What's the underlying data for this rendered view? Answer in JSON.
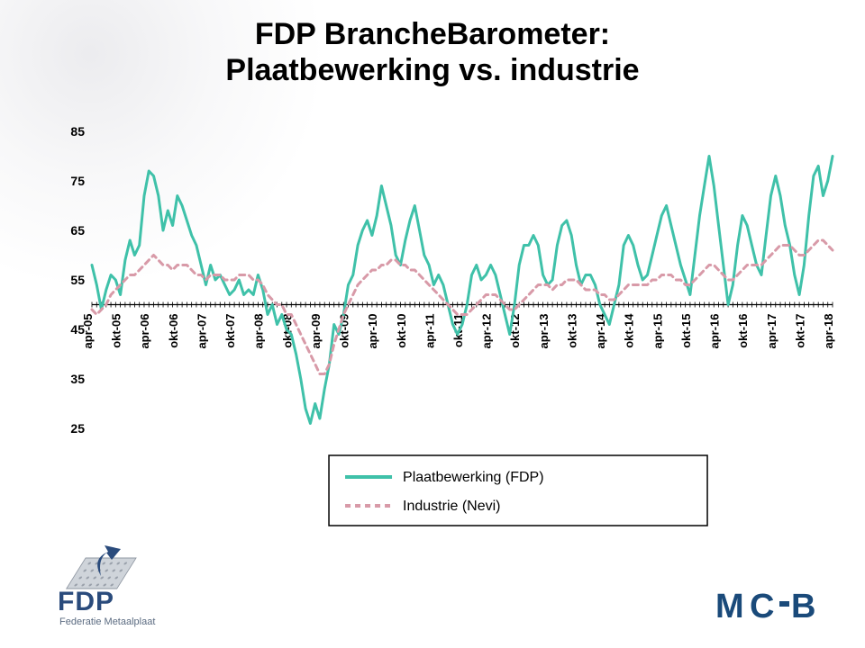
{
  "title_line1": "FDP BrancheBarometer:",
  "title_line2": "Plaatbewerking vs. industrie",
  "chart": {
    "type": "line",
    "background_color": "#ffffff",
    "ylim": [
      25,
      85
    ],
    "ytick_step": 10,
    "yticks": [
      25,
      35,
      45,
      55,
      65,
      75,
      85
    ],
    "ytick_fontsize": 14,
    "ytick_fontweight": "bold",
    "xtick_fontsize": 13,
    "xtick_fontweight": "bold",
    "xtick_rotation": -90,
    "axis_baseline_y": 50,
    "axis_color": "#000000",
    "minor_tick_every_month": true,
    "x_labels": [
      "apr-05",
      "okt-05",
      "apr-06",
      "okt-06",
      "apr-07",
      "okt-07",
      "apr-08",
      "okt-08",
      "apr-09",
      "okt-09",
      "apr-10",
      "okt-10",
      "apr-11",
      "okt-11",
      "apr-12",
      "okt-12",
      "apr-13",
      "okt-13",
      "apr-14",
      "okt-14",
      "apr-15",
      "okt-15",
      "apr-16",
      "okt-16",
      "apr-17",
      "okt-17",
      "apr-18"
    ],
    "n_months": 157,
    "series": [
      {
        "name": "Plaatbewerking (FDP)",
        "color": "#3fc1a9",
        "line_width": 3,
        "dash": "none",
        "values": [
          58,
          54,
          49,
          53,
          56,
          55,
          52,
          59,
          63,
          60,
          62,
          72,
          77,
          76,
          72,
          65,
          69,
          66,
          72,
          70,
          67,
          64,
          62,
          58,
          54,
          58,
          55,
          56,
          54,
          52,
          53,
          55,
          52,
          53,
          52,
          56,
          53,
          48,
          50,
          46,
          48,
          45,
          44,
          40,
          35,
          29,
          26,
          30,
          27,
          33,
          38,
          46,
          44,
          48,
          54,
          56,
          62,
          65,
          67,
          64,
          68,
          74,
          70,
          66,
          60,
          58,
          63,
          67,
          70,
          65,
          60,
          58,
          54,
          56,
          54,
          50,
          46,
          44,
          46,
          50,
          56,
          58,
          55,
          56,
          58,
          56,
          52,
          48,
          44,
          50,
          58,
          62,
          62,
          64,
          62,
          56,
          54,
          55,
          62,
          66,
          67,
          64,
          58,
          54,
          56,
          56,
          54,
          50,
          48,
          46,
          50,
          54,
          62,
          64,
          62,
          58,
          55,
          56,
          60,
          64,
          68,
          70,
          66,
          62,
          58,
          55,
          52,
          60,
          68,
          74,
          80,
          74,
          66,
          58,
          50,
          54,
          62,
          68,
          66,
          62,
          58,
          56,
          64,
          72,
          76,
          72,
          66,
          62,
          56,
          52,
          58,
          68,
          76,
          78,
          72,
          75,
          80
        ]
      },
      {
        "name": "Industrie (Nevi)",
        "color": "#d89aa8",
        "line_width": 3,
        "dash": "6,5",
        "values": [
          49,
          48,
          49,
          50,
          52,
          53,
          54,
          55,
          56,
          56,
          57,
          58,
          59,
          60,
          59,
          58,
          58,
          57,
          58,
          58,
          58,
          57,
          56,
          56,
          55,
          56,
          56,
          56,
          55,
          55,
          55,
          56,
          56,
          56,
          55,
          55,
          54,
          52,
          51,
          50,
          50,
          48,
          48,
          46,
          44,
          42,
          40,
          38,
          36,
          36,
          38,
          42,
          45,
          48,
          50,
          52,
          54,
          55,
          56,
          57,
          57,
          58,
          58,
          59,
          59,
          58,
          58,
          57,
          57,
          56,
          55,
          54,
          53,
          52,
          51,
          50,
          49,
          48,
          48,
          48,
          49,
          50,
          51,
          52,
          52,
          52,
          51,
          50,
          49,
          49,
          50,
          51,
          52,
          53,
          54,
          54,
          54,
          53,
          54,
          54,
          55,
          55,
          55,
          54,
          53,
          53,
          53,
          52,
          52,
          51,
          51,
          52,
          53,
          54,
          54,
          54,
          54,
          54,
          55,
          55,
          56,
          56,
          56,
          55,
          55,
          54,
          54,
          55,
          56,
          57,
          58,
          58,
          57,
          56,
          55,
          55,
          56,
          57,
          58,
          58,
          58,
          58,
          59,
          60,
          61,
          62,
          62,
          62,
          61,
          60,
          60,
          61,
          62,
          63,
          63,
          62,
          61
        ]
      }
    ],
    "legend": {
      "position": "bottom-center",
      "border_color": "#000000",
      "background": "#ffffff",
      "fontsize": 16
    }
  },
  "logos": {
    "fdp_main": "FDP",
    "fdp_sub": "Federatie Metaalplaat",
    "fdp_color": "#2a4b7c",
    "mcb_text": "MCB",
    "mcb_color": "#1a4a7a"
  }
}
